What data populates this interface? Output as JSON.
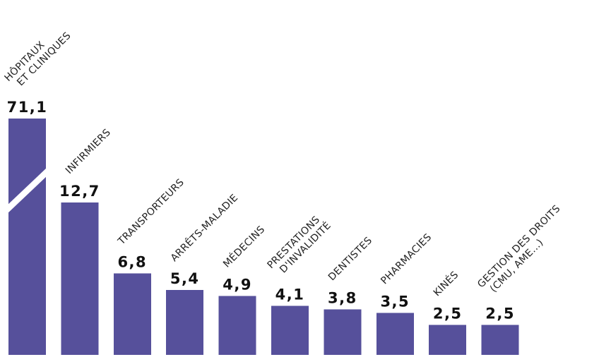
{
  "chart_data": {
    "type": "bar",
    "categories": [
      [
        "HÔPITAUX",
        "ET CLINIQUES"
      ],
      [
        "INFIRMIERS"
      ],
      [
        "TRANSPORTEURS"
      ],
      [
        "ARRÊTS-MALADIE"
      ],
      [
        "MÉDECINS"
      ],
      [
        "PRESTATIONS",
        "D'INVALIDITÉ"
      ],
      [
        "DENTISTES"
      ],
      [
        "PHARMACIES"
      ],
      [
        "KINÉS"
      ],
      [
        "GESTION DES DROITS",
        "(CMU, AME...)"
      ]
    ],
    "values": [
      71.1,
      12.7,
      6.8,
      5.4,
      4.9,
      4.1,
      3.8,
      3.5,
      2.5,
      2.5
    ],
    "value_labels": [
      "71,1",
      "12,7",
      "6,8",
      "5,4",
      "4,9",
      "4,1",
      "3,8",
      "3,5",
      "2,5",
      "2,5"
    ],
    "axis_break": {
      "bar_index": 0
    },
    "bar_color": "#56509b",
    "title": "",
    "xlabel": "",
    "ylabel": ""
  }
}
